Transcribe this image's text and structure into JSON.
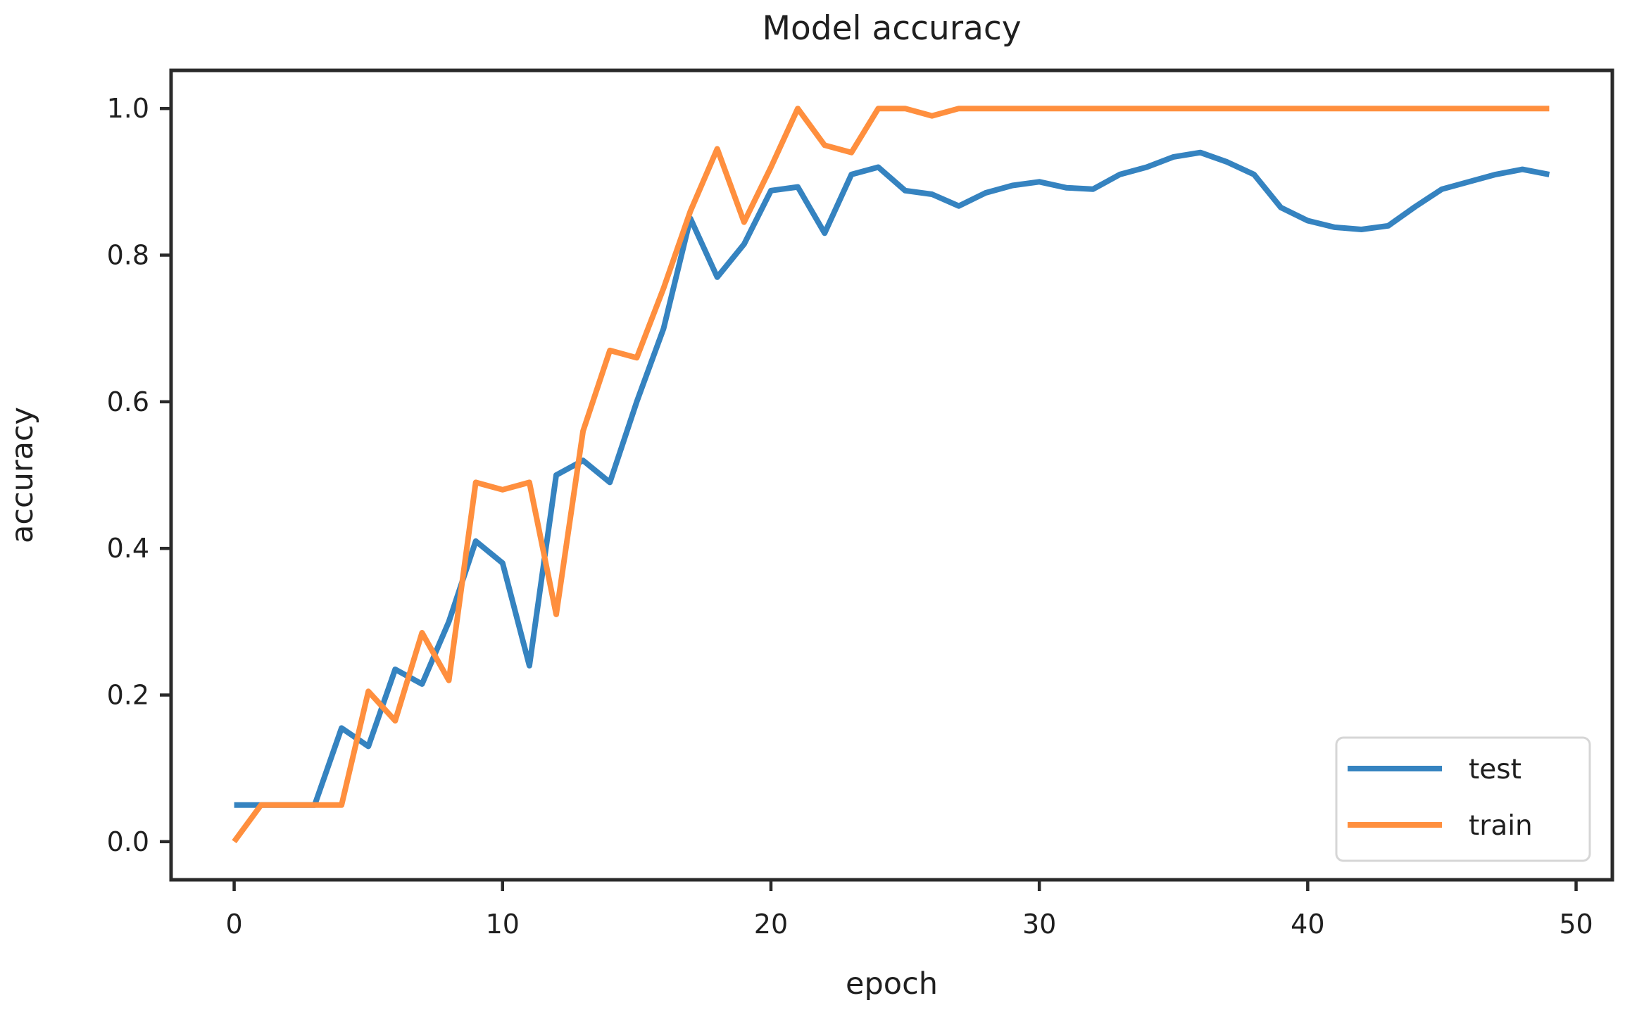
{
  "figure": {
    "title": "Model accuracy",
    "xlabel": "epoch",
    "ylabel": "accuracy"
  },
  "legend": {
    "position": "lower right",
    "items": [
      {
        "label": "test",
        "color": "#3583c0"
      },
      {
        "label": "train",
        "color": "#ff8f3e"
      }
    ]
  },
  "colors": {
    "test_line": "#3583c0",
    "train_line": "#ff8f3e",
    "spine": "#2a2a2a",
    "text": "#1f1f1f",
    "legend_border": "#d6d6d6",
    "background": "#ffffff"
  },
  "chart_data": {
    "type": "line",
    "title": "Model accuracy",
    "xlabel": "epoch",
    "ylabel": "accuracy",
    "grid": false,
    "legend_position": "lower right",
    "xlim": [
      -2.35,
      51.35
    ],
    "ylim": [
      -0.052,
      1.052
    ],
    "xticks": [
      0,
      10,
      20,
      30,
      40,
      50
    ],
    "yticks": [
      0.0,
      0.2,
      0.4,
      0.6,
      0.8,
      1.0
    ],
    "xticklabels": [
      "0",
      "10",
      "20",
      "30",
      "40",
      "50"
    ],
    "yticklabels": [
      "0.0",
      "0.2",
      "0.4",
      "0.6",
      "0.8",
      "1.0"
    ],
    "x": [
      0,
      1,
      2,
      3,
      4,
      5,
      6,
      7,
      8,
      9,
      10,
      11,
      12,
      13,
      14,
      15,
      16,
      17,
      18,
      19,
      20,
      21,
      22,
      23,
      24,
      25,
      26,
      27,
      28,
      29,
      30,
      31,
      32,
      33,
      34,
      35,
      36,
      37,
      38,
      39,
      40,
      41,
      42,
      43,
      44,
      45,
      46,
      47,
      48,
      49
    ],
    "series": [
      {
        "name": "test",
        "color": "#3583c0",
        "values": [
          0.05,
          0.05,
          0.05,
          0.05,
          0.155,
          0.13,
          0.235,
          0.215,
          0.3,
          0.41,
          0.38,
          0.24,
          0.5,
          0.52,
          0.49,
          0.6,
          0.7,
          0.85,
          0.77,
          0.815,
          0.888,
          0.893,
          0.83,
          0.91,
          0.92,
          0.888,
          0.883,
          0.867,
          0.885,
          0.895,
          0.9,
          0.892,
          0.89,
          0.91,
          0.92,
          0.934,
          0.94,
          0.927,
          0.91,
          0.865,
          0.847,
          0.838,
          0.835,
          0.84,
          0.866,
          0.89,
          0.9,
          0.91,
          0.917,
          0.91
        ]
      },
      {
        "name": "train",
        "color": "#ff8f3e",
        "values": [
          0.0,
          0.05,
          0.05,
          0.05,
          0.05,
          0.205,
          0.165,
          0.285,
          0.22,
          0.49,
          0.48,
          0.49,
          0.31,
          0.56,
          0.67,
          0.66,
          0.755,
          0.86,
          0.945,
          0.845,
          0.92,
          1.0,
          0.95,
          0.94,
          1.0,
          1.0,
          0.99,
          1.0,
          1.0,
          1.0,
          1.0,
          1.0,
          1.0,
          1.0,
          1.0,
          1.0,
          1.0,
          1.0,
          1.0,
          1.0,
          1.0,
          1.0,
          1.0,
          1.0,
          1.0,
          1.0,
          1.0,
          1.0,
          1.0,
          1.0
        ]
      }
    ]
  }
}
